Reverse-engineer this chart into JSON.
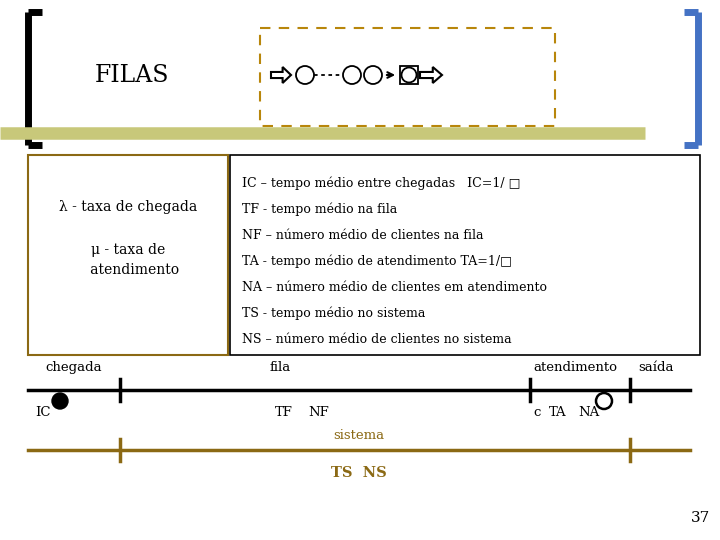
{
  "title": "FILAS",
  "bg_color": "#ffffff",
  "bracket_color_left": "#000000",
  "bracket_color_right": "#4472c4",
  "header_line_color": "#c8c87a",
  "dashed_box_color": "#b8860b",
  "left_box_border": "#8B6914",
  "right_box_border": "#000000",
  "right_box_lines": [
    "IC – tempo médio entre chegadas   IC=1/ □",
    "TF - tempo médio na fila",
    "NF – número médio de clientes na fila",
    "TA - tempo médio de atendimento TA=1/□",
    "NA – número médio de clientes em atendimento",
    "TS - tempo médio no sistema",
    "NS – número médio de clientes no sistema"
  ],
  "timeline_color": "#000000",
  "system_line_color": "#8B6914",
  "page_number": "37",
  "fig_w": 7.2,
  "fig_h": 5.4,
  "dpi": 100
}
